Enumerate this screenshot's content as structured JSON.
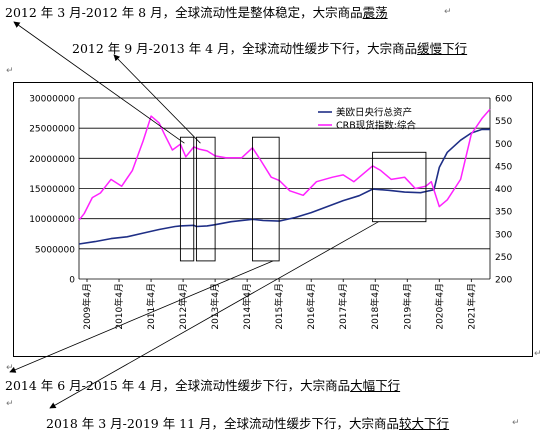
{
  "annotations": {
    "a1": {
      "prefix": "2012 年 3 月-2012 年 8 月，全球流动性是整体稳定，大宗商品",
      "emph": "震荡"
    },
    "a2": {
      "prefix": "2012 年 9 月-2013 年 4 月，全球流动性缓步下行，大宗商品",
      "emph": "缓慢下行"
    },
    "a3": {
      "prefix": "2014 年 6 月-2015 年 4 月，全球流动性缓步下行，大宗商品",
      "emph": "大幅下行"
    },
    "a4": {
      "prefix": "2018 年 3 月-2019 年 11 月，全球流动性缓步下行，大宗商品",
      "emph": "较大下行"
    }
  },
  "para_mark": "↵",
  "colors": {
    "series_left": "#1f2f86",
    "series_right": "#ff22ff",
    "grid": "#000000",
    "arrow": "#000000"
  },
  "chart_data": {
    "type": "line",
    "x": [
      "2009年4月",
      "2010年4月",
      "2011年4月",
      "2012年4月",
      "2013年4月",
      "2014年4月",
      "2015年4月",
      "2016年4月",
      "2017年4月",
      "2018年4月",
      "2019年4月",
      "2020年4月",
      "2021年4月"
    ],
    "x_start": "2009-01",
    "x_end": "2021-11",
    "ylim_left": [
      0,
      30000000
    ],
    "yticks_left": [
      "0",
      "5000000",
      "10000000",
      "15000000",
      "20000000",
      "25000000",
      "30000000"
    ],
    "ylim_right": [
      200,
      600
    ],
    "yticks_right": [
      "200",
      "250",
      "300",
      "350",
      "400",
      "450",
      "500",
      "550",
      "600"
    ],
    "grid": "horizontal",
    "legend_position": "top-right",
    "series": [
      {
        "name": "美欧日央行总资产",
        "axis": "left",
        "color": "#1f2f86",
        "points": [
          [
            "2009-01",
            5800000
          ],
          [
            "2009-07",
            6200000
          ],
          [
            "2010-01",
            6700000
          ],
          [
            "2010-07",
            7000000
          ],
          [
            "2011-01",
            7600000
          ],
          [
            "2011-07",
            8200000
          ],
          [
            "2012-01",
            8700000
          ],
          [
            "2012-03",
            8800000
          ],
          [
            "2012-08",
            8900000
          ],
          [
            "2012-09",
            8700000
          ],
          [
            "2013-01",
            8800000
          ],
          [
            "2013-04",
            9000000
          ],
          [
            "2013-10",
            9500000
          ],
          [
            "2014-06",
            9900000
          ],
          [
            "2014-10",
            9700000
          ],
          [
            "2015-04",
            9600000
          ],
          [
            "2015-10",
            10200000
          ],
          [
            "2016-04",
            11000000
          ],
          [
            "2016-10",
            12000000
          ],
          [
            "2017-04",
            13000000
          ],
          [
            "2017-10",
            13800000
          ],
          [
            "2018-03",
            14900000
          ],
          [
            "2018-09",
            14700000
          ],
          [
            "2019-03",
            14400000
          ],
          [
            "2019-09",
            14300000
          ],
          [
            "2019-11",
            14500000
          ],
          [
            "2020-02",
            14800000
          ],
          [
            "2020-04",
            18500000
          ],
          [
            "2020-07",
            21000000
          ],
          [
            "2020-12",
            23000000
          ],
          [
            "2021-04",
            24200000
          ],
          [
            "2021-08",
            24800000
          ],
          [
            "2021-11",
            24800000
          ]
        ]
      },
      {
        "name": "CRB现货指数:综合",
        "axis": "right",
        "color": "#ff22ff",
        "points": [
          [
            "2009-01",
            330
          ],
          [
            "2009-03",
            345
          ],
          [
            "2009-06",
            380
          ],
          [
            "2009-09",
            390
          ],
          [
            "2010-01",
            420
          ],
          [
            "2010-05",
            405
          ],
          [
            "2010-09",
            440
          ],
          [
            "2011-01",
            505
          ],
          [
            "2011-04",
            560
          ],
          [
            "2011-07",
            545
          ],
          [
            "2011-09",
            520
          ],
          [
            "2011-12",
            485
          ],
          [
            "2012-03",
            498
          ],
          [
            "2012-05",
            470
          ],
          [
            "2012-08",
            492
          ],
          [
            "2012-10",
            487
          ],
          [
            "2013-01",
            483
          ],
          [
            "2013-04",
            472
          ],
          [
            "2013-08",
            468
          ],
          [
            "2014-02",
            468
          ],
          [
            "2014-06",
            490
          ],
          [
            "2014-09",
            463
          ],
          [
            "2015-01",
            425
          ],
          [
            "2015-04",
            418
          ],
          [
            "2015-08",
            395
          ],
          [
            "2016-01",
            385
          ],
          [
            "2016-06",
            415
          ],
          [
            "2016-12",
            425
          ],
          [
            "2017-04",
            430
          ],
          [
            "2017-08",
            415
          ],
          [
            "2018-03",
            450
          ],
          [
            "2018-06",
            440
          ],
          [
            "2018-10",
            420
          ],
          [
            "2019-03",
            425
          ],
          [
            "2019-07",
            400
          ],
          [
            "2019-11",
            405
          ],
          [
            "2020-01",
            415
          ],
          [
            "2020-04",
            360
          ],
          [
            "2020-07",
            375
          ],
          [
            "2020-12",
            420
          ],
          [
            "2021-04",
            520
          ],
          [
            "2021-08",
            555
          ],
          [
            "2021-11",
            575
          ]
        ]
      }
    ],
    "highlight_boxes": [
      {
        "from": "2012-03",
        "to": "2012-08",
        "y_left": [
          3000000,
          23500000
        ]
      },
      {
        "from": "2012-09",
        "to": "2013-04",
        "y_left": [
          3000000,
          23500000
        ]
      },
      {
        "from": "2014-06",
        "to": "2015-04",
        "y_left": [
          3000000,
          23500000
        ]
      },
      {
        "from": "2018-03",
        "to": "2019-11",
        "y_left": [
          9500000,
          21000000
        ]
      }
    ]
  }
}
